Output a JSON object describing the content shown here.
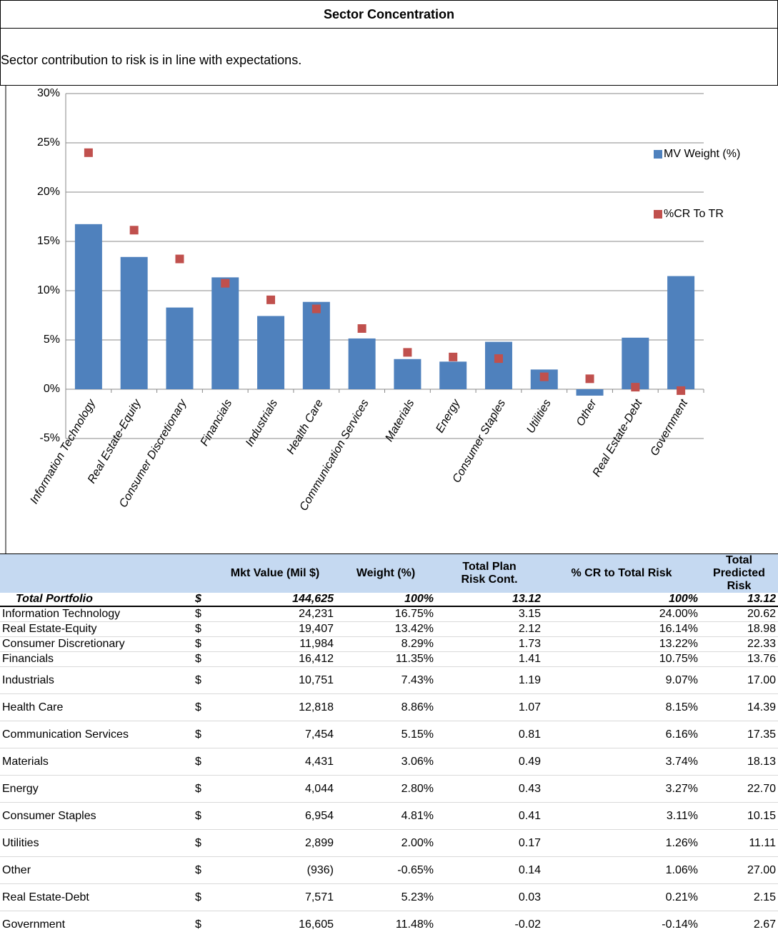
{
  "header": {
    "title": "Sector Concentration",
    "subtitle": "Sector contribution to risk is in line with expectations."
  },
  "chart_data": {
    "type": "bar_scatter",
    "categories": [
      "Information Technology",
      "Real Estate-Equity",
      "Consumer Discretionary",
      "Financials",
      "Industrials",
      "Health Care",
      "Communication Services",
      "Materials",
      "Energy",
      "Consumer Staples",
      "Utilities",
      "Other",
      "Real Estate-Debt",
      "Government"
    ],
    "series": [
      {
        "name": "MV Weight (%)",
        "color": "#4f81bd",
        "mark": "bar",
        "values": [
          16.75,
          13.42,
          8.29,
          11.35,
          7.43,
          8.86,
          5.15,
          3.06,
          2.8,
          4.81,
          2.0,
          -0.65,
          5.23,
          11.48
        ]
      },
      {
        "name": "%CR To TR",
        "color": "#c0504d",
        "mark": "square",
        "values": [
          24.0,
          16.14,
          13.22,
          10.75,
          9.07,
          8.15,
          6.16,
          3.74,
          3.27,
          3.11,
          1.26,
          1.06,
          0.21,
          -0.14
        ]
      }
    ],
    "ylim": [
      -5,
      30
    ],
    "yticks": [
      {
        "value": -5,
        "label": "-5%"
      },
      {
        "value": 0,
        "label": "0%"
      },
      {
        "value": 5,
        "label": "5%"
      },
      {
        "value": 10,
        "label": "10%"
      },
      {
        "value": 15,
        "label": "15%"
      },
      {
        "value": 20,
        "label": "20%"
      },
      {
        "value": 25,
        "label": "25%"
      },
      {
        "value": 30,
        "label": "30%"
      }
    ],
    "grid": true,
    "legend": "right"
  },
  "table": {
    "columns": [
      "",
      "",
      "Mkt Value (Mil $)",
      "Weight (%)",
      "Total Plan Risk Cont.",
      "% CR to Total Risk",
      "Total Predicted Risk"
    ],
    "total": [
      "Total Portfolio",
      "$",
      "144,625",
      "100%",
      "13.12",
      "100%",
      "13.12"
    ],
    "rows": [
      [
        "Information Technology",
        "$",
        "24,231",
        "16.75%",
        "3.15",
        "24.00%",
        "20.62"
      ],
      [
        "Real Estate-Equity",
        "$",
        "19,407",
        "13.42%",
        "2.12",
        "16.14%",
        "18.98"
      ],
      [
        "Consumer Discretionary",
        "$",
        "11,984",
        "8.29%",
        "1.73",
        "13.22%",
        "22.33"
      ],
      [
        "Financials",
        "$",
        "16,412",
        "11.35%",
        "1.41",
        "10.75%",
        "13.76"
      ],
      [
        "Industrials",
        "$",
        "10,751",
        "7.43%",
        "1.19",
        "9.07%",
        "17.00"
      ],
      [
        "Health Care",
        "$",
        "12,818",
        "8.86%",
        "1.07",
        "8.15%",
        "14.39"
      ],
      [
        "Communication Services",
        "$",
        "7,454",
        "5.15%",
        "0.81",
        "6.16%",
        "17.35"
      ],
      [
        "Materials",
        "$",
        "4,431",
        "3.06%",
        "0.49",
        "3.74%",
        "18.13"
      ],
      [
        "Energy",
        "$",
        "4,044",
        "2.80%",
        "0.43",
        "3.27%",
        "22.70"
      ],
      [
        "Consumer Staples",
        "$",
        "6,954",
        "4.81%",
        "0.41",
        "3.11%",
        "10.15"
      ],
      [
        "Utilities",
        "$",
        "2,899",
        "2.00%",
        "0.17",
        "1.26%",
        "11.11"
      ],
      [
        "Other",
        "$",
        "(936)",
        "-0.65%",
        "0.14",
        "1.06%",
        "27.00"
      ],
      [
        "Real Estate-Debt",
        "$",
        "7,571",
        "5.23%",
        "0.03",
        "0.21%",
        "2.15"
      ],
      [
        "Government",
        "$",
        "16,605",
        "11.48%",
        "-0.02",
        "-0.14%",
        "2.67"
      ]
    ]
  }
}
